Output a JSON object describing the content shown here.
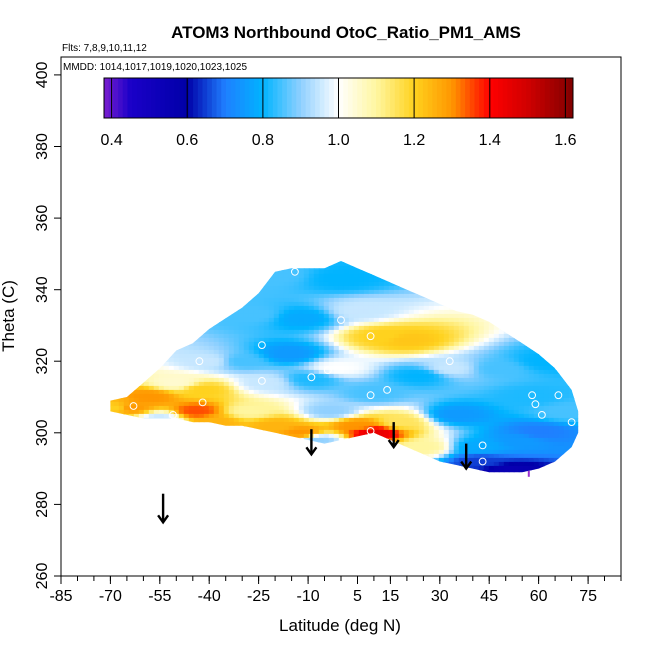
{
  "chart_data": {
    "type": "heatmap",
    "title": "ATOM3 Northbound OtoC_Ratio_PM1_AMS",
    "flights_text": "Flts: 7,8,9,10,11,12",
    "mmdd_text": "MMDD: 1014,1017,1019,1020,1023,1025",
    "xlabel": "Latitude (deg N)",
    "ylabel": "Theta (C)",
    "xlim": [
      -85,
      85
    ],
    "ylim": [
      260,
      405
    ],
    "x_ticks": [
      -85,
      -70,
      -55,
      -40,
      -25,
      -10,
      5,
      15,
      30,
      45,
      60,
      75
    ],
    "x_tick_labels": [
      "-85",
      "-70",
      "-55",
      "-40",
      "-25",
      "-10",
      "5",
      "15",
      "30",
      "45",
      "60",
      "75"
    ],
    "x_minor_step": 5,
    "y_ticks": [
      260,
      280,
      300,
      320,
      340,
      360,
      380,
      400
    ],
    "y_tick_labels": [
      "260",
      "280",
      "300",
      "320",
      "340",
      "360",
      "380",
      "400"
    ],
    "colorbar": {
      "range": [
        0.38,
        1.62
      ],
      "ticks": [
        0.4,
        0.6,
        0.8,
        1.0,
        1.2,
        1.4,
        1.6
      ],
      "tick_labels": [
        "0.4",
        "0.6",
        "0.8",
        "1.0",
        "1.2",
        "1.4",
        "1.6"
      ],
      "stops": [
        {
          "v": 0.38,
          "c": "#7b1fd0"
        },
        {
          "v": 0.45,
          "c": "#1a00c8"
        },
        {
          "v": 0.6,
          "c": "#0000a8"
        },
        {
          "v": 0.7,
          "c": "#1f7fff"
        },
        {
          "v": 0.8,
          "c": "#00b4ff"
        },
        {
          "v": 0.9,
          "c": "#8fd0ff"
        },
        {
          "v": 1.0,
          "c": "#ffffff"
        },
        {
          "v": 1.1,
          "c": "#fff6a0"
        },
        {
          "v": 1.2,
          "c": "#ffd21e"
        },
        {
          "v": 1.3,
          "c": "#ff9600"
        },
        {
          "v": 1.4,
          "c": "#ff0000"
        },
        {
          "v": 1.5,
          "c": "#d00000"
        },
        {
          "v": 1.62,
          "c": "#800000"
        }
      ]
    },
    "field_samples": [
      {
        "lat": -64,
        "theta": 307,
        "value": 1.3
      },
      {
        "lat": -68,
        "theta": 307,
        "value": 1.2
      },
      {
        "lat": -58,
        "theta": 310,
        "value": 1.3
      },
      {
        "lat": -50,
        "theta": 314,
        "value": 1.05
      },
      {
        "lat": -55,
        "theta": 304,
        "value": 0.95
      },
      {
        "lat": -44,
        "theta": 306,
        "value": 1.35
      },
      {
        "lat": -42,
        "theta": 312,
        "value": 1.2
      },
      {
        "lat": -38,
        "theta": 303,
        "value": 1.25
      },
      {
        "lat": -40,
        "theta": 320,
        "value": 0.95
      },
      {
        "lat": -28,
        "theta": 306,
        "value": 1.1
      },
      {
        "lat": -30,
        "theta": 320,
        "value": 0.85
      },
      {
        "lat": -26,
        "theta": 333,
        "value": 0.85
      },
      {
        "lat": -20,
        "theta": 344,
        "value": 0.85
      },
      {
        "lat": -23,
        "theta": 314,
        "value": 0.95
      },
      {
        "lat": -20,
        "theta": 302,
        "value": 1.25
      },
      {
        "lat": -12,
        "theta": 300,
        "value": 1.3
      },
      {
        "lat": -16,
        "theta": 322,
        "value": 0.75
      },
      {
        "lat": -12,
        "theta": 332,
        "value": 0.78
      },
      {
        "lat": -9,
        "theta": 315,
        "value": 0.82
      },
      {
        "lat": -7,
        "theta": 298,
        "value": 0.9
      },
      {
        "lat": -3,
        "theta": 306,
        "value": 0.9
      },
      {
        "lat": -1,
        "theta": 318,
        "value": 1.0
      },
      {
        "lat": 0,
        "theta": 343,
        "value": 0.8
      },
      {
        "lat": 6,
        "theta": 334,
        "value": 0.95
      },
      {
        "lat": 5,
        "theta": 302,
        "value": 1.3
      },
      {
        "lat": 10,
        "theta": 300,
        "value": 1.45
      },
      {
        "lat": 13,
        "theta": 327,
        "value": 1.2
      },
      {
        "lat": 20,
        "theta": 326,
        "value": 1.22
      },
      {
        "lat": 10,
        "theta": 311,
        "value": 0.85
      },
      {
        "lat": 18,
        "theta": 303,
        "value": 1.15
      },
      {
        "lat": 25,
        "theta": 296,
        "value": 1.1
      },
      {
        "lat": 24,
        "theta": 316,
        "value": 0.8
      },
      {
        "lat": 33,
        "theta": 318,
        "value": 0.95
      },
      {
        "lat": 35,
        "theta": 305,
        "value": 0.75
      },
      {
        "lat": 42,
        "theta": 292,
        "value": 0.65
      },
      {
        "lat": 42,
        "theta": 296,
        "value": 0.78
      },
      {
        "lat": 50,
        "theta": 289,
        "value": 0.55
      },
      {
        "lat": 55,
        "theta": 298,
        "value": 0.75
      },
      {
        "lat": 58,
        "theta": 310,
        "value": 0.82
      },
      {
        "lat": 60,
        "theta": 300,
        "value": 0.7
      },
      {
        "lat": 62,
        "theta": 320,
        "value": 0.8
      },
      {
        "lat": 68,
        "theta": 306,
        "value": 0.85
      },
      {
        "lat": 48,
        "theta": 318,
        "value": 0.85
      }
    ],
    "coverage": [
      {
        "lat": -70,
        "theta_min": 306,
        "theta_max": 309
      },
      {
        "lat": -65,
        "theta_min": 305,
        "theta_max": 310
      },
      {
        "lat": -60,
        "theta_min": 304,
        "theta_max": 314
      },
      {
        "lat": -55,
        "theta_min": 304,
        "theta_max": 318
      },
      {
        "lat": -50,
        "theta_min": 304,
        "theta_max": 323
      },
      {
        "lat": -45,
        "theta_min": 303,
        "theta_max": 325
      },
      {
        "lat": -40,
        "theta_min": 303,
        "theta_max": 329
      },
      {
        "lat": -35,
        "theta_min": 302,
        "theta_max": 332
      },
      {
        "lat": -30,
        "theta_min": 302,
        "theta_max": 335
      },
      {
        "lat": -25,
        "theta_min": 301,
        "theta_max": 339
      },
      {
        "lat": -20,
        "theta_min": 300,
        "theta_max": 345
      },
      {
        "lat": -15,
        "theta_min": 299,
        "theta_max": 346
      },
      {
        "lat": -10,
        "theta_min": 298,
        "theta_max": 346
      },
      {
        "lat": -5,
        "theta_min": 297,
        "theta_max": 346
      },
      {
        "lat": 0,
        "theta_min": 298,
        "theta_max": 348
      },
      {
        "lat": 5,
        "theta_min": 299,
        "theta_max": 346
      },
      {
        "lat": 10,
        "theta_min": 300,
        "theta_max": 344
      },
      {
        "lat": 15,
        "theta_min": 298,
        "theta_max": 342
      },
      {
        "lat": 20,
        "theta_min": 296,
        "theta_max": 340
      },
      {
        "lat": 25,
        "theta_min": 294,
        "theta_max": 338
      },
      {
        "lat": 30,
        "theta_min": 292,
        "theta_max": 336
      },
      {
        "lat": 35,
        "theta_min": 291,
        "theta_max": 334
      },
      {
        "lat": 40,
        "theta_min": 290,
        "theta_max": 333
      },
      {
        "lat": 45,
        "theta_min": 289,
        "theta_max": 331
      },
      {
        "lat": 50,
        "theta_min": 289,
        "theta_max": 328
      },
      {
        "lat": 55,
        "theta_min": 289,
        "theta_max": 325
      },
      {
        "lat": 60,
        "theta_min": 290,
        "theta_max": 322
      },
      {
        "lat": 65,
        "theta_min": 292,
        "theta_max": 318
      },
      {
        "lat": 70,
        "theta_min": 296,
        "theta_max": 312
      },
      {
        "lat": 72,
        "theta_min": 300,
        "theta_max": 306
      }
    ],
    "sample_points": [
      {
        "lat": -63,
        "theta": 307.5
      },
      {
        "lat": -51,
        "theta": 305
      },
      {
        "lat": -42,
        "theta": 308.5
      },
      {
        "lat": -43,
        "theta": 320
      },
      {
        "lat": -24,
        "theta": 324.5
      },
      {
        "lat": -24,
        "theta": 314.5
      },
      {
        "lat": -14,
        "theta": 345
      },
      {
        "lat": -9,
        "theta": 315.5
      },
      {
        "lat": -4,
        "theta": 317.5
      },
      {
        "lat": 0,
        "theta": 331.5
      },
      {
        "lat": 9,
        "theta": 327
      },
      {
        "lat": 9,
        "theta": 310.5
      },
      {
        "lat": 14,
        "theta": 312
      },
      {
        "lat": 9,
        "theta": 300.5
      },
      {
        "lat": 33,
        "theta": 320
      },
      {
        "lat": 43,
        "theta": 296.5
      },
      {
        "lat": 43,
        "theta": 292
      },
      {
        "lat": 58,
        "theta": 310.5
      },
      {
        "lat": 59,
        "theta": 308
      },
      {
        "lat": 61,
        "theta": 305
      },
      {
        "lat": 66,
        "theta": 318.5
      },
      {
        "lat": 66,
        "theta": 310.5
      },
      {
        "lat": 70,
        "theta": 303
      }
    ],
    "purple_marker": {
      "lat": 57,
      "theta": 288
    },
    "arrows": [
      {
        "lat": -54,
        "theta_top": 283,
        "theta_tip": 275
      },
      {
        "lat": -9,
        "theta_top": 301,
        "theta_tip": 294
      },
      {
        "lat": 16,
        "theta_top": 303,
        "theta_tip": 296
      },
      {
        "lat": 38,
        "theta_top": 297,
        "theta_tip": 290
      }
    ],
    "grid": false,
    "legend": "colorbar-top"
  }
}
